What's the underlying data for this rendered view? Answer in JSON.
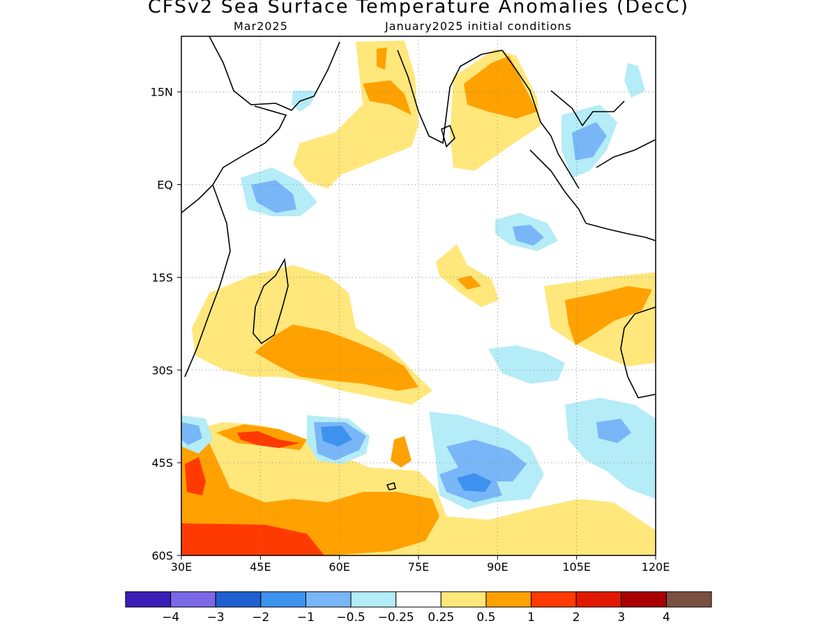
{
  "title": "CFSv2 Sea Surface Temperature Anomalies (DecC)",
  "subtitle_left": "Mar2025",
  "subtitle_right": "January2025 initial conditions",
  "map": {
    "lon_range": [
      30,
      120
    ],
    "lat_range": [
      -60,
      24
    ],
    "x_ticks": [
      {
        "value": 30,
        "label": "30E"
      },
      {
        "value": 45,
        "label": "45E"
      },
      {
        "value": 60,
        "label": "60E"
      },
      {
        "value": 75,
        "label": "75E"
      },
      {
        "value": 90,
        "label": "90E"
      },
      {
        "value": 105,
        "label": "105E"
      },
      {
        "value": 120,
        "label": "120E"
      }
    ],
    "y_ticks": [
      {
        "value": 15,
        "label": "15N"
      },
      {
        "value": 0,
        "label": "EQ"
      },
      {
        "value": -15,
        "label": "15S"
      },
      {
        "value": -30,
        "label": "30S"
      },
      {
        "value": -45,
        "label": "45S"
      },
      {
        "value": -60,
        "label": "60S"
      }
    ],
    "grid": true
  },
  "colorbar": {
    "colors": [
      "#3a1fb8",
      "#7a68e8",
      "#1f5fd0",
      "#3d92ef",
      "#79b6f7",
      "#b4ecf7",
      "#ffffff",
      "#ffe77c",
      "#ffa100",
      "#ff3a00",
      "#e01a00",
      "#a80000",
      "#7a5040"
    ],
    "labels": [
      "−4",
      "−3",
      "−2",
      "−1",
      "−0.5",
      "−0.25",
      "0.25",
      "0.5",
      "1",
      "2",
      "3",
      "4"
    ]
  }
}
